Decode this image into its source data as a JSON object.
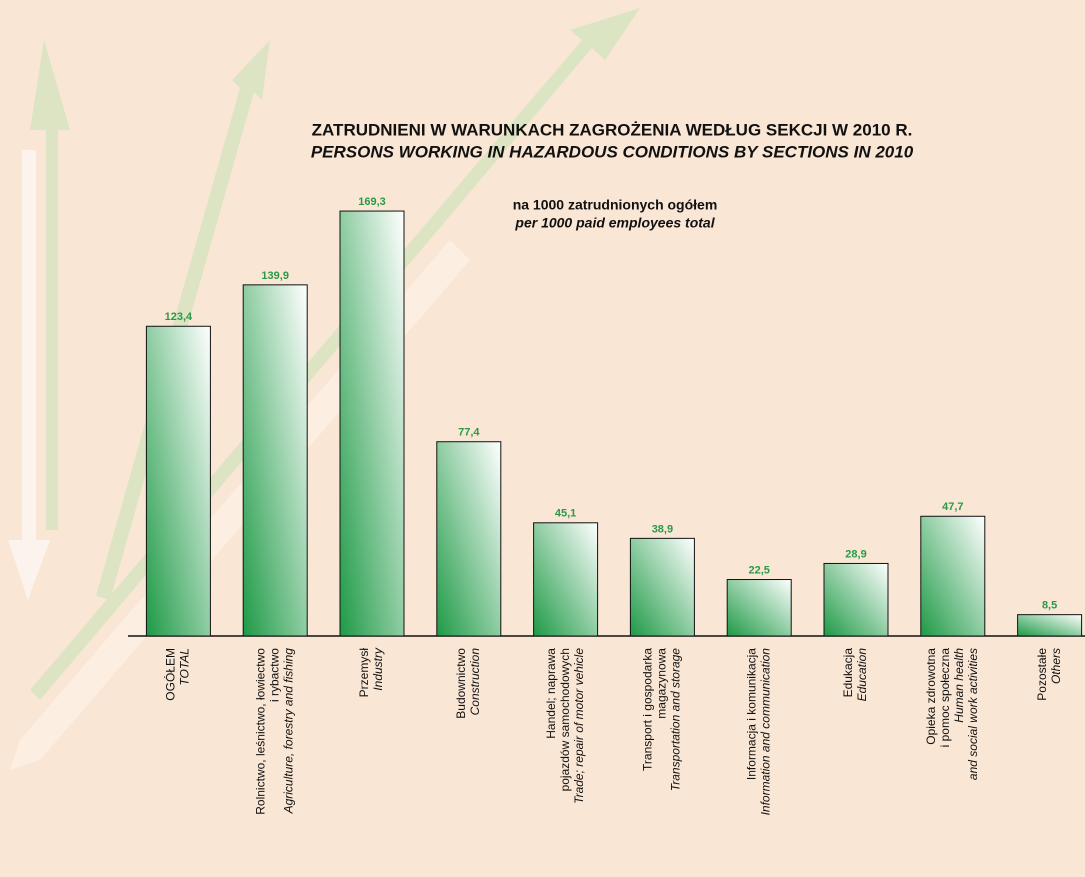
{
  "chart_data": {
    "type": "bar",
    "title": "ZATRUDNIENI W WARUNKACH ZAGROŻENIA WEDŁUG SEKCJI W 2010 R.",
    "title_en": "PERSONS WORKING IN HAZARDOUS CONDITIONS BY SECTIONS IN 2010",
    "subtitle": "na 1000 zatrudnionych ogółem",
    "subtitle_en": "per 1000 paid employees total",
    "categories": [
      {
        "pl": [
          "OGÓŁEM"
        ],
        "en": [
          "TOTAL"
        ]
      },
      {
        "pl": [
          "Rolnictwo, leśnictwo, łowiectwo",
          "i rybactwo"
        ],
        "en": [
          "Agriculture, forestry and fishing"
        ]
      },
      {
        "pl": [
          "Przemysł"
        ],
        "en": [
          "Industry"
        ]
      },
      {
        "pl": [
          "Budownictwo"
        ],
        "en": [
          "Construction"
        ]
      },
      {
        "pl": [
          "Handel; naprawa",
          "pojazdów samochodowych"
        ],
        "en": [
          "Trade; repair of motor vehicle"
        ]
      },
      {
        "pl": [
          "Transport i gospodarka",
          "magazynowa"
        ],
        "en": [
          "Transportation and storage"
        ]
      },
      {
        "pl": [
          "Informacja i komunikacja"
        ],
        "en": [
          "Information and communication"
        ]
      },
      {
        "pl": [
          "Edukacja"
        ],
        "en": [
          "Education"
        ]
      },
      {
        "pl": [
          "Opieka zdrowotna",
          "i pomoc społeczna"
        ],
        "en": [
          "Human health",
          "and social work activities"
        ]
      },
      {
        "pl": [
          "Pozostałe"
        ],
        "en": [
          "Others"
        ]
      }
    ],
    "values": [
      123.4,
      139.9,
      169.3,
      77.4,
      45.1,
      38.9,
      22.5,
      28.9,
      47.7,
      8.5
    ],
    "value_labels": [
      "123,4",
      "139,9",
      "169,3",
      "77,4",
      "45,1",
      "38,9",
      "22,5",
      "28,9",
      "47,7",
      "8,5"
    ],
    "color": "#1e9a46",
    "ylim": [
      0,
      200
    ]
  }
}
